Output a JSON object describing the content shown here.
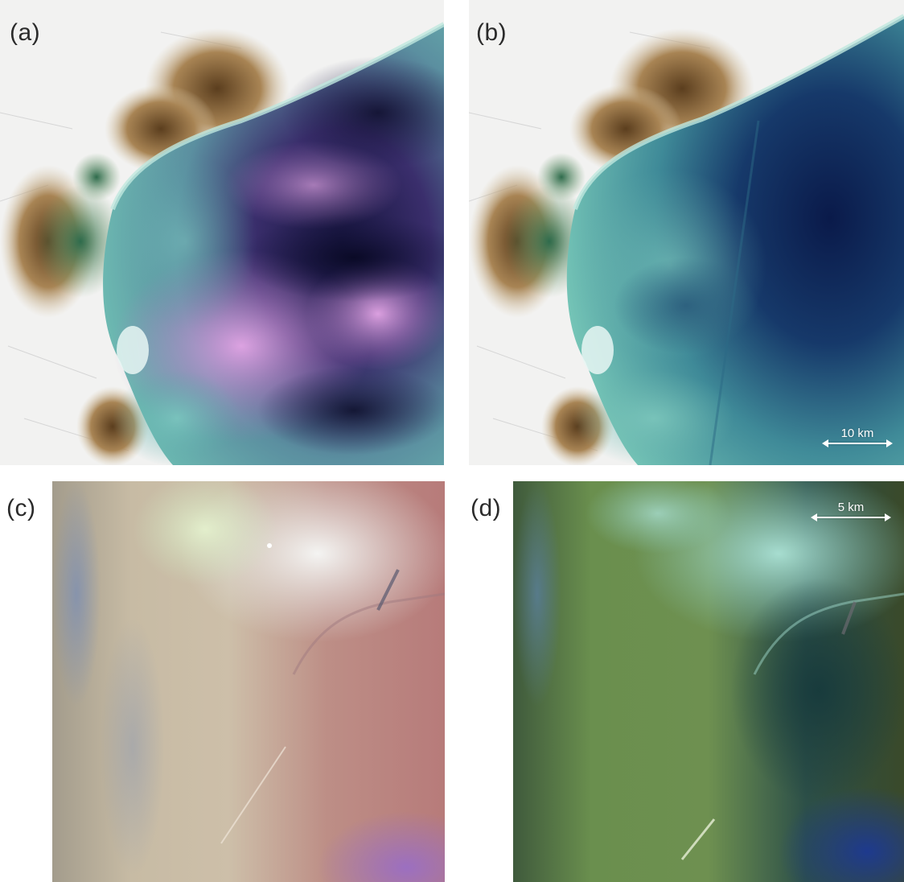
{
  "panels": [
    {
      "label": "(a)",
      "colors": {
        "sea_light": "#5fb7b0",
        "sea_deep": "#1f1b4a",
        "highlight": "#c98fd0",
        "land": "#f1f1f0",
        "marsh": "#8d6c3e"
      }
    },
    {
      "label": "(b)",
      "colors": {
        "sea_light": "#63b7b2",
        "sea_deep": "#0f2a5c",
        "highlight": "#2f6f8f",
        "land": "#f1f1f0",
        "marsh": "#8d6c3e"
      }
    },
    {
      "label": "(c)",
      "colors": {
        "base": "#c0b6a6",
        "top_light": "#ecf0ec",
        "right": "#b57f7c",
        "purple": "#9a72b5"
      }
    },
    {
      "label": "(d)",
      "colors": {
        "base": "#5c7c45",
        "top_light": "#8fcdbf",
        "right": "#22424a",
        "blue": "#203c8a"
      }
    }
  ],
  "scalebars": {
    "b": "10 km",
    "d": "5 km"
  }
}
